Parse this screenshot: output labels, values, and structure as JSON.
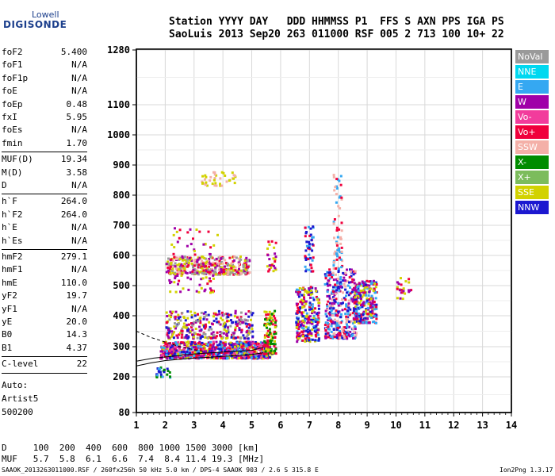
{
  "logo": {
    "line1": "Lowell",
    "line2": "DIGISONDE"
  },
  "header": {
    "line1": "Station YYYY DAY   DDD HHMMSS P1  FFS S AXN PPS IGA PS",
    "line2": "SaoLuis 2013 Sep20 263 011000 RSF 005 2 713 100 10+ 22"
  },
  "params": [
    {
      "label": "foF2",
      "value": "5.400"
    },
    {
      "label": "foF1",
      "value": "N/A"
    },
    {
      "label": "foF1p",
      "value": "N/A"
    },
    {
      "label": "foE",
      "value": "N/A"
    },
    {
      "label": "foEp",
      "value": "0.48"
    },
    {
      "label": "fxI",
      "value": "5.95"
    },
    {
      "label": "foEs",
      "value": "N/A"
    },
    {
      "label": "fmin",
      "value": "1.70"
    },
    {
      "label": "MUF(D)",
      "value": "19.34"
    },
    {
      "label": "M(D)",
      "value": "3.58"
    },
    {
      "label": "D",
      "value": "N/A"
    },
    {
      "label": "h`F",
      "value": "264.0"
    },
    {
      "label": "h`F2",
      "value": "264.0"
    },
    {
      "label": "h`E",
      "value": "N/A"
    },
    {
      "label": "h`Es",
      "value": "N/A"
    },
    {
      "label": "hmF2",
      "value": "279.1"
    },
    {
      "label": "hmF1",
      "value": "N/A"
    },
    {
      "label": "hmE",
      "value": "110.0"
    },
    {
      "label": "yF2",
      "value": "19.7"
    },
    {
      "label": "yF1",
      "value": "N/A"
    },
    {
      "label": "yE",
      "value": "20.0"
    },
    {
      "label": "B0",
      "value": "14.3"
    },
    {
      "label": "B1",
      "value": "4.37"
    },
    {
      "label": "C-level",
      "value": "22"
    }
  ],
  "auto": {
    "line1": "Auto:",
    "line2": "Artist5",
    "line3": "500200"
  },
  "legend": [
    {
      "name": "NoVal",
      "color": "#9a9a9a"
    },
    {
      "name": "NNE",
      "color": "#00d8f0"
    },
    {
      "name": "E",
      "color": "#35a8f2"
    },
    {
      "name": "W",
      "color": "#a000a8"
    },
    {
      "name": "Vo-",
      "color": "#f23c9c"
    },
    {
      "name": "Vo+",
      "color": "#f0003c"
    },
    {
      "name": "SSW",
      "color": "#f4b0a8"
    },
    {
      "name": "X-",
      "color": "#008c00"
    },
    {
      "name": "X+",
      "color": "#7cbc5c"
    },
    {
      "name": "SSE",
      "color": "#d2d200"
    },
    {
      "name": "NNW",
      "color": "#1c18d0"
    }
  ],
  "bottom": {
    "d_line": "D     100  200  400  600  800 1000 1500 3000 [km]",
    "muf_line": "MUF   5.7  5.8  6.1  6.6  7.4  8.4 11.4 19.3 [MHz]"
  },
  "footer": {
    "left": "SAAOK_2013263011000.RSF / 260fx256h 50 kHz 5.0 km / DPS-4 SAAOK 903 / 2.6 S 315.8 E",
    "right": "Ion2Png 1.3.17"
  },
  "chart_data": {
    "type": "scatter",
    "x_ticks": [
      1,
      2,
      3,
      4,
      5,
      6,
      7,
      8,
      9,
      10,
      11,
      12,
      13,
      14
    ],
    "y_ticks": [
      80,
      200,
      300,
      400,
      500,
      600,
      700,
      800,
      900,
      1000,
      1100,
      1280
    ],
    "xlim": [
      1,
      14
    ],
    "ylim": [
      80,
      1280
    ],
    "x_scale": "linear",
    "y_scale": "nonlinear",
    "grid": true,
    "clusters": [
      {
        "x": [
          1.8,
          5.6
        ],
        "y": [
          265,
          320
        ],
        "n": 900,
        "colors": [
          "#f0003c",
          "#a000a8",
          "#f23c9c",
          "#1c18d0",
          "#d2d200",
          "#35a8f2"
        ]
      },
      {
        "x": [
          2.0,
          4.9
        ],
        "y": [
          540,
          600
        ],
        "n": 380,
        "colors": [
          "#d2d200",
          "#f4b0a8",
          "#f0003c",
          "#a000a8",
          "#9a9a9a"
        ]
      },
      {
        "x": [
          2.0,
          5.0
        ],
        "y": [
          330,
          420
        ],
        "n": 320,
        "colors": [
          "#a000a8",
          "#f0003c",
          "#d2d200",
          "#9a9a9a",
          "#1c18d0"
        ]
      },
      {
        "x": [
          2.1,
          3.8
        ],
        "y": [
          480,
          700
        ],
        "n": 90,
        "colors": [
          "#f0003c",
          "#a000a8",
          "#d2d200"
        ]
      },
      {
        "x": [
          6.5,
          7.3
        ],
        "y": [
          320,
          500
        ],
        "n": 260,
        "colors": [
          "#f0003c",
          "#1c18d0",
          "#35a8f2",
          "#a000a8",
          "#d2d200"
        ]
      },
      {
        "x": [
          7.5,
          8.6
        ],
        "y": [
          330,
          560
        ],
        "n": 380,
        "colors": [
          "#1c18d0",
          "#35a8f2",
          "#f0003c",
          "#a000a8",
          "#f4b0a8"
        ]
      },
      {
        "x": [
          8.5,
          9.3
        ],
        "y": [
          380,
          520
        ],
        "n": 260,
        "colors": [
          "#1c18d0",
          "#35a8f2",
          "#f0003c",
          "#a000a8",
          "#d2d200"
        ]
      },
      {
        "x": [
          5.4,
          5.8
        ],
        "y": [
          280,
          420
        ],
        "n": 120,
        "colors": [
          "#d2d200",
          "#008c00",
          "#f0003c"
        ]
      },
      {
        "x": [
          6.8,
          7.1
        ],
        "y": [
          550,
          700
        ],
        "n": 50,
        "colors": [
          "#f0003c",
          "#35a8f2",
          "#1c18d0"
        ]
      },
      {
        "x": [
          7.8,
          8.1
        ],
        "y": [
          560,
          880
        ],
        "n": 70,
        "colors": [
          "#f4b0a8",
          "#f0003c",
          "#35a8f2"
        ]
      },
      {
        "x": [
          3.2,
          4.4
        ],
        "y": [
          835,
          880
        ],
        "n": 40,
        "colors": [
          "#d2d200",
          "#f4b0a8"
        ]
      },
      {
        "x": [
          1.6,
          2.2
        ],
        "y": [
          200,
          235
        ],
        "n": 25,
        "colors": [
          "#008c00",
          "#35a8f2",
          "#1c18d0"
        ]
      },
      {
        "x": [
          10.0,
          10.5
        ],
        "y": [
          460,
          540
        ],
        "n": 25,
        "colors": [
          "#f0003c",
          "#d2d200",
          "#a000a8"
        ]
      },
      {
        "x": [
          5.5,
          5.8
        ],
        "y": [
          550,
          660
        ],
        "n": 25,
        "colors": [
          "#f0003c",
          "#a000a8",
          "#d2d200"
        ]
      }
    ],
    "trace_x_traces": [
      {
        "x": [
          1.0,
          1.5,
          2.0,
          3.0,
          4.0,
          5.0,
          5.4
        ],
        "y": [
          236,
          246,
          254,
          262,
          268,
          274,
          280
        ]
      },
      {
        "x": [
          1.0,
          1.6,
          2.2,
          3.0,
          4.0,
          5.0,
          5.4
        ],
        "y": [
          252,
          262,
          268,
          276,
          282,
          288,
          298
        ]
      }
    ],
    "trace_x_dashed": {
      "x": [
        1.0,
        1.5,
        2.0,
        2.5,
        3.0,
        3.3
      ],
      "y": [
        350,
        330,
        315,
        300,
        290,
        285
      ]
    }
  }
}
